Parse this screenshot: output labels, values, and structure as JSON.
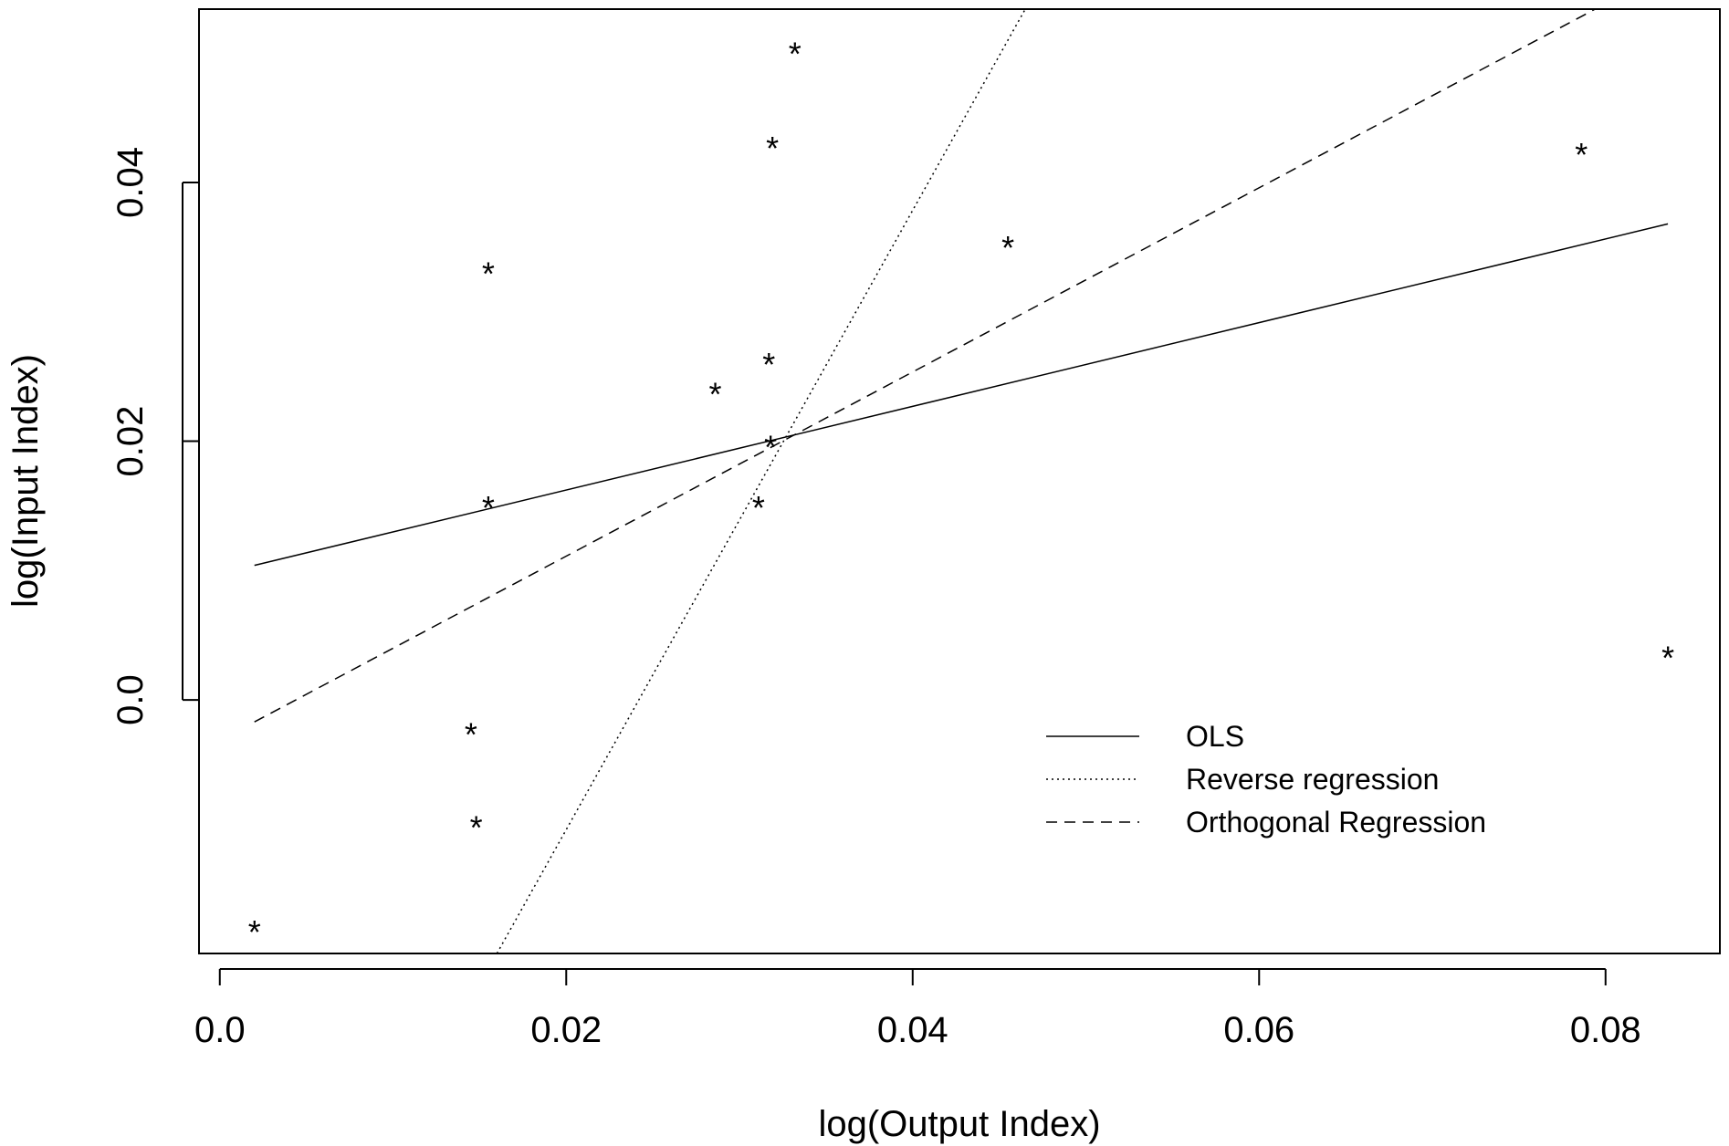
{
  "chart_data": {
    "type": "scatter",
    "title": "",
    "xlabel": "log(Output Index)",
    "ylabel": "log(Input Index)",
    "xlim": [
      -0.0012,
      0.0866
    ],
    "ylim": [
      -0.0196,
      0.0534
    ],
    "xticks": [
      0.0,
      0.02,
      0.04,
      0.06,
      0.08
    ],
    "xtick_labels": [
      "0.0",
      "0.02",
      "0.04",
      "0.06",
      "0.08"
    ],
    "yticks": [
      0.0,
      0.02,
      0.04
    ],
    "ytick_labels": [
      "0.0",
      "0.02",
      "0.04"
    ],
    "point_marker": "*",
    "points": [
      {
        "x": 0.0332,
        "y": 0.0504
      },
      {
        "x": 0.0319,
        "y": 0.0431
      },
      {
        "x": 0.0786,
        "y": 0.0426
      },
      {
        "x": 0.0455,
        "y": 0.0354
      },
      {
        "x": 0.0155,
        "y": 0.0334
      },
      {
        "x": 0.0317,
        "y": 0.0264
      },
      {
        "x": 0.0286,
        "y": 0.0241
      },
      {
        "x": 0.0318,
        "y": 0.02
      },
      {
        "x": 0.0311,
        "y": 0.0153
      },
      {
        "x": 0.0155,
        "y": 0.0153
      },
      {
        "x": 0.0836,
        "y": 0.0037
      },
      {
        "x": 0.0145,
        "y": -0.0022
      },
      {
        "x": 0.0148,
        "y": -0.0094
      },
      {
        "x": 0.002,
        "y": -0.0175
      }
    ],
    "series": [
      {
        "name": "OLS",
        "linestyle": "solid",
        "x": [
          0.002,
          0.0836
        ],
        "y": [
          0.0104,
          0.0368
        ]
      },
      {
        "name": "Reverse regression",
        "linestyle": "dotted",
        "x": [
          0.016,
          0.0465
        ],
        "y": [
          -0.0196,
          0.0534
        ]
      },
      {
        "name": "Orthogonal Regression",
        "linestyle": "dashed",
        "x": [
          0.002,
          0.0794
        ],
        "y": [
          -0.0017,
          0.0534
        ]
      }
    ],
    "legend": {
      "position": "bottom-right",
      "entries": [
        {
          "label": "OLS",
          "linestyle": "solid"
        },
        {
          "label": "Reverse regression",
          "linestyle": "dotted"
        },
        {
          "label": "Orthogonal Regression",
          "linestyle": "dashed"
        }
      ]
    },
    "grid": false,
    "colors": {
      "ink": "#000000",
      "background": "#ffffff"
    }
  }
}
